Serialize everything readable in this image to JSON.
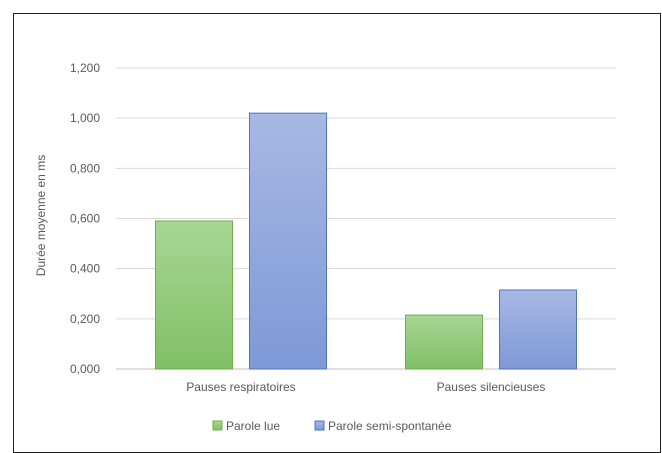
{
  "chart_data": {
    "type": "bar",
    "title": "",
    "xlabel": "",
    "ylabel": "Durée moyenne en ms",
    "ylim": [
      0,
      1.2
    ],
    "yticks": [
      "0,000",
      "0,200",
      "0,400",
      "0,600",
      "0,800",
      "1,000",
      "1,200"
    ],
    "categories": [
      "Pauses respiratoires",
      "Pauses silencieuses"
    ],
    "series": [
      {
        "name": "Parole lue",
        "values": [
          0.59,
          0.215
        ],
        "color": "#8fc97a"
      },
      {
        "name": "Parole semi-spontanée",
        "values": [
          1.02,
          0.315
        ],
        "color": "#8fa6dc"
      }
    ],
    "grid": true,
    "legend": "bottom"
  }
}
